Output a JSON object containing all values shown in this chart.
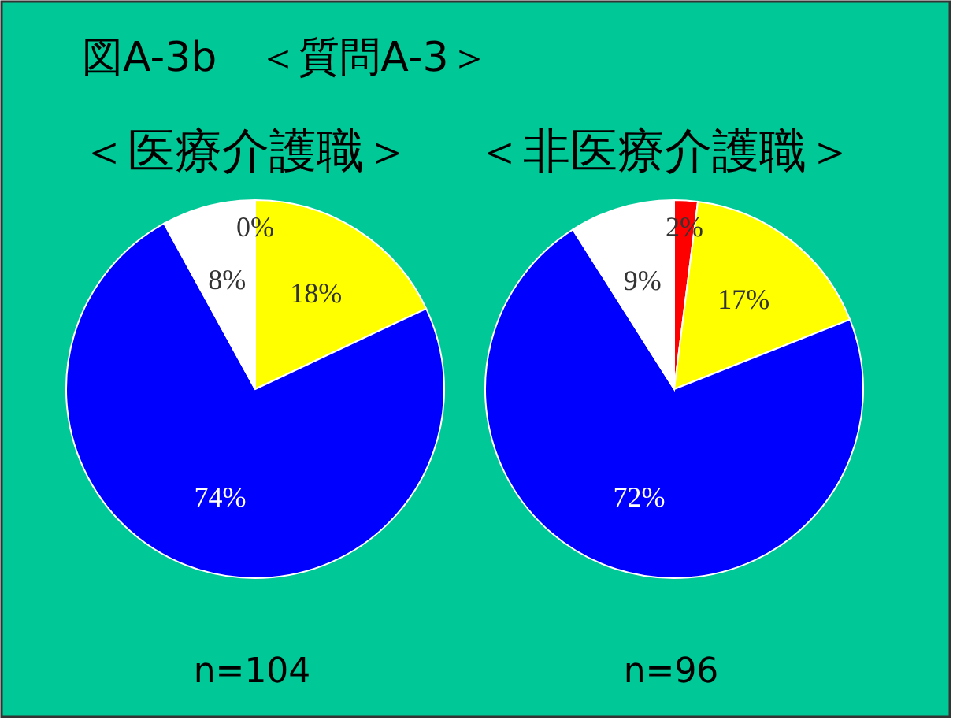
{
  "chart_data": [
    {
      "type": "pie",
      "title": "図A-3b　＜質問A-3＞",
      "subtitle": "＜医療介護職＞",
      "categories": [
        null,
        null,
        null,
        null
      ],
      "values": [
        0,
        18,
        74,
        8
      ],
      "colors": [
        "#ff0000",
        "#ffff00",
        "#0000ff",
        "#ffffff"
      ],
      "value_labels": [
        "0%",
        "18%",
        "74%",
        "8%"
      ],
      "annotations": [
        "n=104"
      ]
    },
    {
      "type": "pie",
      "subtitle": "＜非医療介護職＞",
      "categories": [
        null,
        null,
        null,
        null
      ],
      "values": [
        2,
        17,
        72,
        9
      ],
      "colors": [
        "#ff0000",
        "#ffff00",
        "#0000ff",
        "#ffffff"
      ],
      "value_labels": [
        "2%",
        "17%",
        "72%",
        "9%"
      ],
      "annotations": [
        "n=96"
      ]
    }
  ]
}
